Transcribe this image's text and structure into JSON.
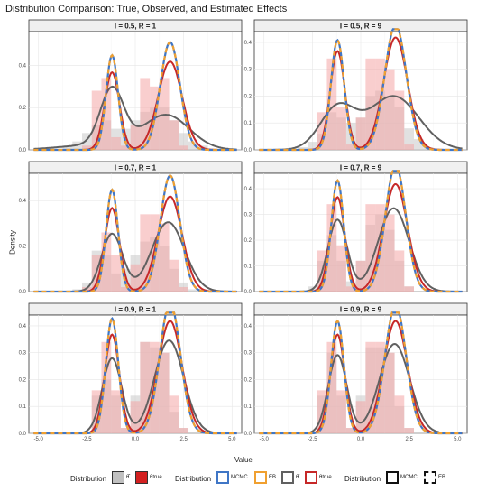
{
  "chart_data": {
    "type": "faceted_density_histogram",
    "title": "Distribution Comparison: True, Observed, and Estimated Effects",
    "xlabel": "Value",
    "ylabel": "Density",
    "xlim": [
      -5.5,
      5.5
    ],
    "x_ticks": [
      "-5.0",
      "-2.5",
      "0.0",
      "2.5",
      "5.0"
    ],
    "grid": true,
    "legend_position": "bottom",
    "colors": {
      "observed": "#606060",
      "true": "#c62828",
      "mcmc": "#3f76c6",
      "eb": "#f0a030",
      "hist_true": "#f4a6a6",
      "hist_obs": "#c8c8c8",
      "strip_bg": "#f0f0f0"
    },
    "true_params": {
      "w1": 0.35,
      "m1": -1.2,
      "s1": 0.38,
      "m2": 1.8,
      "s2": 0.62
    },
    "facets": [
      {
        "label": "I = 0.5, R = 1",
        "ylim": [
          0,
          0.56
        ],
        "y_ticks": [
          "0.0",
          "0.2",
          "0.4"
        ],
        "y_tick_values": [
          0,
          0.2,
          0.4
        ],
        "est_sd_scale": 0.82,
        "obs_components": [
          [
            0.45,
            -1.2,
            0.6
          ],
          [
            0.55,
            1.6,
            1.2
          ],
          [
            0.12,
            -2.0,
            1.8
          ]
        ],
        "hist_obs": [
          0.02,
          0.04,
          0.08,
          0.12,
          0.14,
          0.1,
          0.1,
          0.14,
          0.18,
          0.2,
          0.2,
          0.14,
          0.08,
          0.04,
          0.02
        ],
        "hist_true": [
          0,
          0,
          0.02,
          0.28,
          0.34,
          0.06,
          0.02,
          0.12,
          0.34,
          0.3,
          0.34,
          0.14,
          0.02,
          0,
          0
        ]
      },
      {
        "label": "I = 0.5, R = 9",
        "ylim": [
          0,
          0.44
        ],
        "y_ticks": [
          "0.0",
          "0.1",
          "0.2",
          "0.3",
          "0.4"
        ],
        "y_tick_values": [
          0,
          0.1,
          0.2,
          0.3,
          0.4
        ],
        "est_sd_scale": 0.9,
        "obs_components": [
          [
            0.35,
            -1.2,
            0.9
          ],
          [
            0.65,
            1.7,
            1.3
          ]
        ],
        "hist_obs": [
          0,
          0.01,
          0.03,
          0.06,
          0.14,
          0.12,
          0.1,
          0.12,
          0.2,
          0.22,
          0.2,
          0.16,
          0.08,
          0.04,
          0.01
        ],
        "hist_true": [
          0,
          0,
          0,
          0.14,
          0.34,
          0.16,
          0.02,
          0.12,
          0.34,
          0.34,
          0.3,
          0.22,
          0.02,
          0,
          0
        ]
      },
      {
        "label": "I = 0.7, R = 1",
        "ylim": [
          0,
          0.52
        ],
        "y_ticks": [
          "0.0",
          "0.2",
          "0.4"
        ],
        "y_tick_values": [
          0,
          0.2,
          0.4
        ],
        "est_sd_scale": 0.82,
        "obs_components": [
          [
            0.35,
            -1.2,
            0.55
          ],
          [
            0.65,
            1.7,
            0.85
          ]
        ],
        "hist_obs": [
          0,
          0.01,
          0.04,
          0.18,
          0.16,
          0.08,
          0.1,
          0.16,
          0.22,
          0.24,
          0.2,
          0.1,
          0.04,
          0.01,
          0
        ],
        "hist_true": [
          0,
          0,
          0.02,
          0.16,
          0.26,
          0.16,
          0.02,
          0.12,
          0.34,
          0.34,
          0.3,
          0.14,
          0.02,
          0,
          0
        ]
      },
      {
        "label": "I = 0.7, R = 9",
        "ylim": [
          0,
          0.46
        ],
        "y_ticks": [
          "0.0",
          "0.1",
          "0.2",
          "0.3",
          "0.4"
        ],
        "y_tick_values": [
          0,
          0.1,
          0.2,
          0.3,
          0.4
        ],
        "est_sd_scale": 0.85,
        "obs_components": [
          [
            0.35,
            -1.2,
            0.5
          ],
          [
            0.65,
            1.7,
            0.8
          ]
        ],
        "hist_obs": [
          0,
          0,
          0.02,
          0.12,
          0.22,
          0.12,
          0.04,
          0.12,
          0.26,
          0.3,
          0.24,
          0.12,
          0.02,
          0,
          0
        ],
        "hist_true": [
          0,
          0,
          0,
          0.16,
          0.34,
          0.18,
          0.02,
          0.12,
          0.34,
          0.34,
          0.3,
          0.16,
          0.02,
          0,
          0
        ]
      },
      {
        "label": "I = 0.9, R = 1",
        "ylim": [
          0,
          0.44
        ],
        "y_ticks": [
          "0.0",
          "0.1",
          "0.2",
          "0.3",
          "0.4"
        ],
        "y_tick_values": [
          0,
          0.1,
          0.2,
          0.3,
          0.4
        ],
        "est_sd_scale": 0.86,
        "obs_components": [
          [
            0.35,
            -1.2,
            0.5
          ],
          [
            0.65,
            1.75,
            0.75
          ]
        ],
        "hist_obs": [
          0,
          0,
          0,
          0.14,
          0.2,
          0.14,
          0.02,
          0.14,
          0.34,
          0.32,
          0.3,
          0.08,
          0.02,
          0,
          0
        ],
        "hist_true": [
          0,
          0,
          0,
          0.16,
          0.34,
          0.16,
          0.02,
          0.12,
          0.34,
          0.34,
          0.3,
          0.14,
          0.02,
          0,
          0
        ]
      },
      {
        "label": "I = 0.9, R = 9",
        "ylim": [
          0,
          0.44
        ],
        "y_ticks": [
          "0.0",
          "0.1",
          "0.2",
          "0.3",
          "0.4"
        ],
        "y_tick_values": [
          0,
          0.1,
          0.2,
          0.3,
          0.4
        ],
        "est_sd_scale": 0.88,
        "obs_components": [
          [
            0.35,
            -1.2,
            0.48
          ],
          [
            0.65,
            1.75,
            0.78
          ]
        ],
        "hist_obs": [
          0,
          0,
          0,
          0.14,
          0.3,
          0.14,
          0.02,
          0.14,
          0.32,
          0.32,
          0.3,
          0.1,
          0.02,
          0,
          0
        ],
        "hist_true": [
          0,
          0,
          0,
          0.16,
          0.34,
          0.16,
          0.02,
          0.12,
          0.34,
          0.34,
          0.3,
          0.14,
          0.02,
          0,
          0
        ]
      }
    ]
  },
  "legend": {
    "groups": [
      {
        "title": "Distribution",
        "keys": [
          {
            "label": "θ̂"
          },
          {
            "label": "θtrue"
          }
        ]
      },
      {
        "title": "Distribution",
        "keys": [
          {
            "label": "MCMC"
          },
          {
            "label": "EB"
          },
          {
            "label": "θ̂"
          },
          {
            "label": "θtrue"
          }
        ]
      },
      {
        "title": "Distribution",
        "keys": [
          {
            "label": "MCMC"
          },
          {
            "label": "EB"
          }
        ]
      }
    ]
  }
}
